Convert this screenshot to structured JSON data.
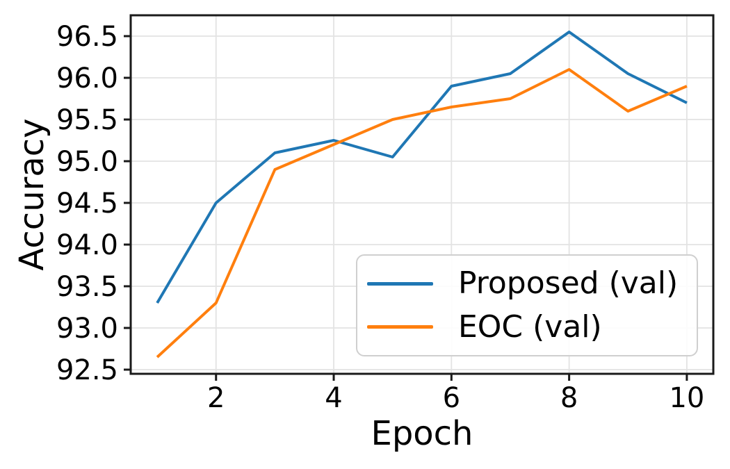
{
  "chart_data": {
    "type": "line",
    "title": "",
    "xlabel": "Epoch",
    "ylabel": "Accuracy",
    "x": [
      1,
      2,
      3,
      4,
      5,
      6,
      7,
      8,
      9,
      10
    ],
    "series": [
      {
        "name": "Proposed (val)",
        "color": "#1f77b4",
        "values": [
          93.3,
          94.5,
          95.1,
          95.25,
          95.05,
          95.9,
          96.05,
          96.55,
          96.05,
          95.7
        ]
      },
      {
        "name": "EOC (val)",
        "color": "#ff7f0e",
        "values": [
          92.65,
          93.3,
          94.9,
          95.2,
          95.5,
          95.65,
          95.75,
          96.1,
          95.6,
          95.9
        ]
      }
    ],
    "xlim": [
      0.55,
      10.45
    ],
    "ylim": [
      92.45,
      96.75
    ],
    "xticks": [
      2,
      4,
      6,
      8,
      10
    ],
    "xticklabels": [
      "2",
      "4",
      "6",
      "8",
      "10"
    ],
    "yticks": [
      92.5,
      93.0,
      93.5,
      94.0,
      94.5,
      95.0,
      95.5,
      96.0,
      96.5
    ],
    "yticklabels": [
      "92.5",
      "93.0",
      "93.5",
      "94.0",
      "94.5",
      "95.0",
      "95.5",
      "96.0",
      "96.5"
    ],
    "grid": true,
    "legend_position": "lower right"
  },
  "colors": {
    "grid": "#e3e3e3",
    "spine": "#1a1a1a",
    "tick": "#1a1a1a",
    "text": "#000000",
    "legend_border": "#cfcfcf",
    "background": "#ffffff"
  }
}
